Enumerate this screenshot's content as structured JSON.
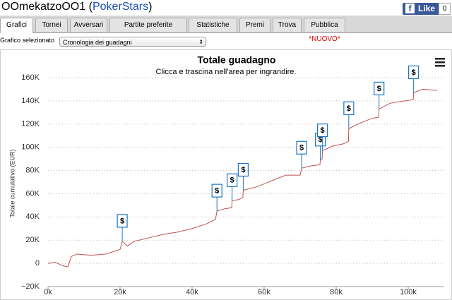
{
  "header": {
    "player": "OOmekatzoOO1",
    "open": "(",
    "site": "PokerStars",
    "close": ")",
    "like": "Like",
    "like_count": 0
  },
  "tabs": [
    "Grafici",
    "Tornei",
    "Avversari",
    "Partite preferite",
    "Statistiche",
    "Premi",
    "Trova",
    "Pubblica"
  ],
  "tab_new": "*NUOVO*",
  "selector": {
    "label": "Grafico selezionato",
    "value": "Cronologia dei guadagni"
  },
  "chart_data": {
    "type": "line",
    "title": "Totale guadagno",
    "subtitle": "Clicca e trascina nell'area per ingrandire.",
    "y_label": "Totale cumulativo (EUR)",
    "x": [
      0,
      2000,
      4000,
      5500,
      6500,
      8000,
      12000,
      16000,
      20000,
      20600,
      22000,
      24000,
      28000,
      32000,
      36000,
      40000,
      44000,
      46500,
      46900,
      49000,
      51000,
      51100,
      53000,
      54100,
      54200,
      58000,
      62000,
      66000,
      70000,
      70400,
      73000,
      75500,
      75600,
      76100,
      76200,
      79000,
      82000,
      83400,
      83500,
      86000,
      90000,
      91800,
      91900,
      95000,
      99000,
      101400,
      101500,
      104000,
      108000
    ],
    "series": [
      {
        "name": "Totale guadagno",
        "color": "#c0504d",
        "values": [
          0,
          1000,
          -2000,
          -3000,
          6000,
          8000,
          7000,
          8000,
          12000,
          19000,
          15000,
          19000,
          22000,
          25000,
          27000,
          30000,
          34000,
          38000,
          45000,
          47000,
          48000,
          54000,
          55000,
          57000,
          63000,
          66000,
          71000,
          76000,
          76000,
          82000,
          84000,
          85000,
          89000,
          90000,
          97000,
          101000,
          103000,
          105000,
          116000,
          120000,
          125000,
          126000,
          133000,
          138000,
          140000,
          141000,
          147000,
          150000,
          149000
        ]
      }
    ],
    "annotations": [
      {
        "x": 20600,
        "y": 19000,
        "text": "$"
      },
      {
        "x": 46900,
        "y": 45000,
        "text": "$"
      },
      {
        "x": 51100,
        "y": 54000,
        "text": "$"
      },
      {
        "x": 54200,
        "y": 63000,
        "text": "$"
      },
      {
        "x": 70400,
        "y": 82000,
        "text": "$"
      },
      {
        "x": 75600,
        "y": 89000,
        "text": "$"
      },
      {
        "x": 76200,
        "y": 97000,
        "text": "$"
      },
      {
        "x": 83500,
        "y": 116000,
        "text": "$"
      },
      {
        "x": 91900,
        "y": 133000,
        "text": "$"
      },
      {
        "x": 101500,
        "y": 147000,
        "text": "$"
      }
    ],
    "annotation_color": "#1a73c8",
    "xlim": [
      0,
      110000
    ],
    "ylim": [
      -20000,
      160000
    ],
    "xticks": [
      {
        "value": 0,
        "label": "0k"
      },
      {
        "value": 20000,
        "label": "20k"
      },
      {
        "value": 40000,
        "label": "40k"
      },
      {
        "value": 60000,
        "label": "60k"
      },
      {
        "value": 80000,
        "label": "80k"
      },
      {
        "value": 100000,
        "label": "100k"
      }
    ],
    "yticks": [
      {
        "value": -20000,
        "label": "−20K"
      },
      0,
      {
        "value": 20000,
        "label": "20K"
      },
      {
        "value": 40000,
        "label": "40K"
      },
      {
        "value": 60000,
        "label": "60K"
      },
      {
        "value": 80000,
        "label": "80K"
      },
      {
        "value": 100000,
        "label": "100K"
      },
      {
        "value": 120000,
        "label": "120K"
      },
      {
        "value": 140000,
        "label": "140K"
      },
      {
        "value": 160000,
        "label": "160K"
      }
    ],
    "grid": true
  }
}
